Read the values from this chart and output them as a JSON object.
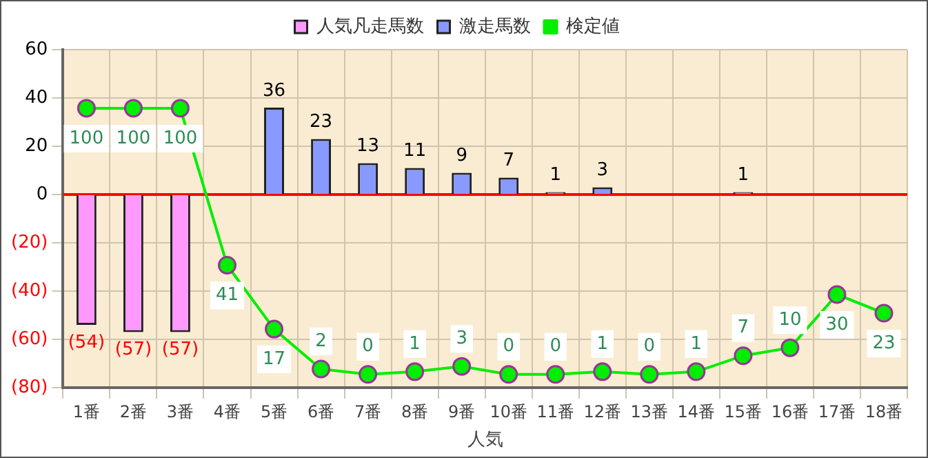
{
  "chart_data": {
    "type": "bar",
    "xlabel": "人気",
    "categories": [
      "1番",
      "2番",
      "3番",
      "4番",
      "5番",
      "6番",
      "7番",
      "8番",
      "9番",
      "10番",
      "11番",
      "12番",
      "13番",
      "14番",
      "15番",
      "16番",
      "17番",
      "18番"
    ],
    "series": [
      {
        "name": "人気凡走馬数",
        "color": "#ff99ff",
        "values": [
          -54,
          -57,
          -57,
          null,
          null,
          null,
          null,
          null,
          null,
          null,
          null,
          null,
          null,
          null,
          null,
          null,
          null,
          null
        ],
        "value_labels": [
          "(54)",
          "(57)",
          "(57)",
          null,
          null,
          null,
          null,
          null,
          null,
          null,
          null,
          null,
          null,
          null,
          null,
          null,
          null,
          null
        ]
      },
      {
        "name": "激走馬数",
        "color": "#8899ff",
        "values": [
          null,
          null,
          null,
          null,
          36,
          23,
          13,
          11,
          9,
          7,
          1,
          3,
          null,
          null,
          1,
          null,
          null,
          null
        ]
      },
      {
        "name": "検定値",
        "type": "line",
        "axis": "y2",
        "color": "#00ee00",
        "values": [
          100,
          100,
          100,
          41,
          17,
          2,
          0,
          1,
          3,
          0,
          0,
          1,
          0,
          1,
          7,
          10,
          30,
          23
        ]
      }
    ],
    "ylim": [
      -80,
      60
    ],
    "yticks": [
      {
        "value": -80,
        "label": "(80)"
      },
      {
        "value": -60,
        "label": "(60)"
      },
      {
        "value": -40,
        "label": "(40)"
      },
      {
        "value": -20,
        "label": "(20)"
      },
      0,
      20,
      40,
      60
    ],
    "y2lim": [
      -5,
      122
    ],
    "ref_lines": [
      {
        "axis": "y",
        "value": 0,
        "color": "#ff0000"
      }
    ],
    "data_labels": true,
    "grid": true,
    "legend": "top",
    "marker": "circle",
    "line_style": "solid"
  }
}
